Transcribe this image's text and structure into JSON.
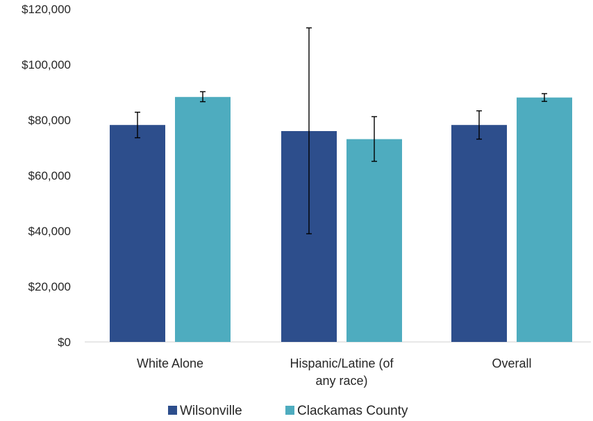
{
  "chart_data": {
    "type": "bar",
    "categories": [
      "White Alone",
      "Hispanic/Latine (of any race)",
      "Overall"
    ],
    "category_lines": [
      [
        "White Alone"
      ],
      [
        "Hispanic/Latine (of",
        "any race)"
      ],
      [
        "Overall"
      ]
    ],
    "series": [
      {
        "name": "Wilsonville",
        "color": "#2d4e8c",
        "values": [
          78200,
          76000,
          78200
        ],
        "error_low": [
          73600,
          39000,
          73100
        ],
        "error_high": [
          82800,
          113200,
          83300
        ]
      },
      {
        "name": "Clackamas County",
        "color": "#4eacbf",
        "values": [
          88300,
          73100,
          88100
        ],
        "error_low": [
          86600,
          65100,
          86700
        ],
        "error_high": [
          90200,
          81200,
          89500
        ]
      }
    ],
    "ylim": [
      0,
      120000
    ],
    "yticks": [
      0,
      20000,
      40000,
      60000,
      80000,
      100000,
      120000
    ],
    "ytick_labels": [
      "$0",
      "$20,000",
      "$40,000",
      "$60,000",
      "$80,000",
      "$100,000",
      "$120,000"
    ],
    "title": "",
    "xlabel": "",
    "ylabel": "",
    "grid": false,
    "legend_position": "bottom"
  }
}
